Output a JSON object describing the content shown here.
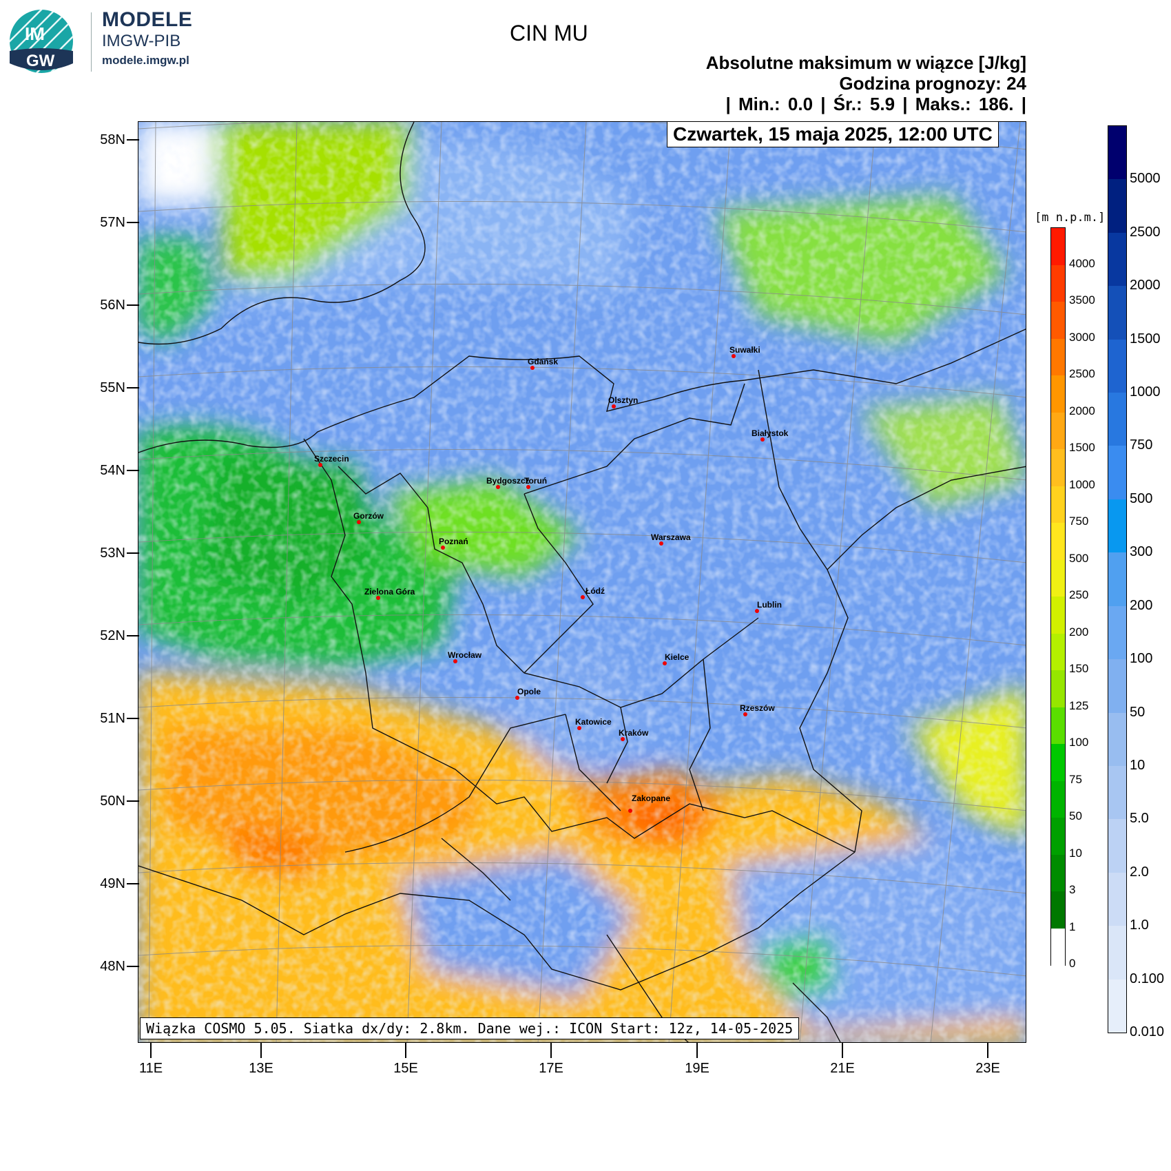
{
  "brand": {
    "logo_text_top": "IM",
    "logo_text_bottom": "GW",
    "title": "MODELE",
    "subtitle": "IMGW-PIB",
    "url": "modele.imgw.pl"
  },
  "header": {
    "title": "CIN MU",
    "subtitle": "Absolutne maksimum w wiązce [J/kg]",
    "forecast_hour": "Godzina prognozy: 24",
    "stats": "| Min.:      0.0 | Śr.:       5.9 | Maks.:      186. |",
    "date": "Czwartek, 15 maja 2025, 12:00 UTC"
  },
  "footnote": "Wiązka COSMO 5.05. Siatka dx/dy: 2.8km. Dane wej.: ICON Start: 12z, 14-05-2025",
  "axes": {
    "lat_labels": [
      "58N",
      "57N",
      "56N",
      "55N",
      "54N",
      "53N",
      "52N",
      "51N",
      "50N",
      "49N",
      "48N"
    ],
    "lon_labels": [
      "11E",
      "13E",
      "15E",
      "17E",
      "19E",
      "21E",
      "23E"
    ]
  },
  "cities": [
    {
      "name": "Gdańsk"
    },
    {
      "name": "Olsztyn"
    },
    {
      "name": "Suwałki"
    },
    {
      "name": "Białystok"
    },
    {
      "name": "Szczecin"
    },
    {
      "name": "Bydgoszcz"
    },
    {
      "name": "Toruń"
    },
    {
      "name": "Gorzów"
    },
    {
      "name": "Poznań"
    },
    {
      "name": "Warszawa"
    },
    {
      "name": "Zielona Góra"
    },
    {
      "name": "Łódź"
    },
    {
      "name": "Lublin"
    },
    {
      "name": "Wrocław"
    },
    {
      "name": "Kielce"
    },
    {
      "name": "Opole"
    },
    {
      "name": "Rzeszów"
    },
    {
      "name": "Katowice"
    },
    {
      "name": "Kraków"
    },
    {
      "name": "Zakopane"
    }
  ],
  "cin_colorbar": {
    "labels": [
      "5000",
      "2500",
      "2000",
      "1500",
      "1000",
      "750",
      "500",
      "300",
      "200",
      "100",
      "50",
      "10",
      "5.0",
      "2.0",
      "1.0",
      "0.100",
      "0.010"
    ],
    "colors": [
      "#00006e",
      "#002080",
      "#0838a0",
      "#1450b8",
      "#1e64d0",
      "#2878e0",
      "#3a8cf0",
      "#0898f0",
      "#50a0f0",
      "#6aa8f2",
      "#80b0f0",
      "#98bdf0",
      "#a8c6f2",
      "#bcd2f4",
      "#ccdcf6",
      "#dae6f8",
      "#e6eefa"
    ]
  },
  "elevation_colorbar": {
    "unit": "[m n.p.m.]",
    "labels": [
      "4000",
      "3500",
      "3000",
      "2500",
      "2000",
      "1500",
      "1000",
      "750",
      "500",
      "250",
      "200",
      "150",
      "125",
      "100",
      "75",
      "50",
      "10",
      "3",
      "1",
      "0"
    ],
    "colors": [
      "#ff1a00",
      "#ff3c00",
      "#ff5a00",
      "#ff7800",
      "#ff9600",
      "#ffa814",
      "#ffbe1e",
      "#ffd21e",
      "#ffe61e",
      "#f0f014",
      "#d2f000",
      "#b4f000",
      "#96e600",
      "#5ade00",
      "#00c800",
      "#00b400",
      "#00a000",
      "#008c00",
      "#007800",
      "#ffffff"
    ]
  }
}
